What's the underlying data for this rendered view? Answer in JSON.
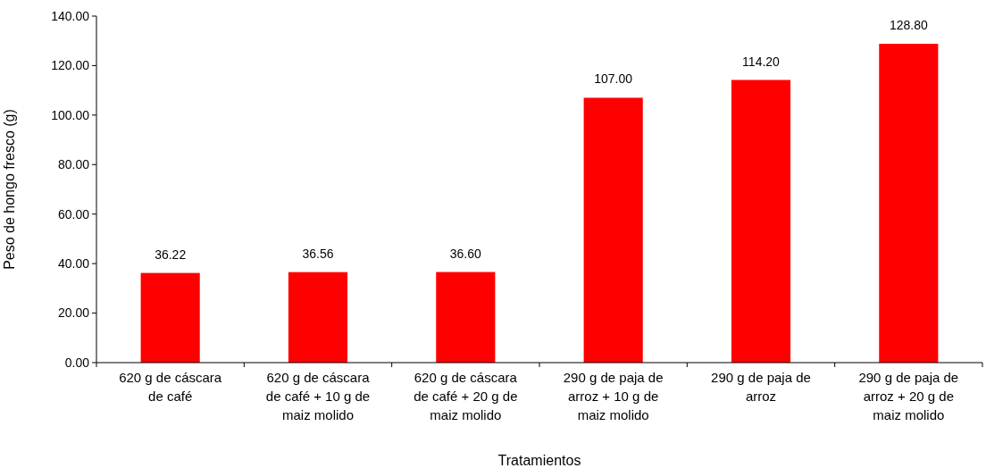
{
  "chart_data": {
    "type": "bar",
    "xlabel": "Tratamientos",
    "ylabel": "Peso de hongo fresco (g)",
    "categories": [
      "620 g de cáscara de café",
      "620 g de cáscara de café + 10 g de maiz molido",
      "620 g de cáscara de café + 20 g de maiz molido",
      "290 g de paja de arroz + 10 g de maiz molido",
      "290 g de paja de arroz",
      "290 g de paja de arroz + 20 g de maiz molido"
    ],
    "values": [
      36.22,
      36.56,
      36.6,
      107,
      114.2,
      128.8
    ],
    "value_labels": [
      "36.22",
      "36.56",
      "36.60",
      "107.00",
      "114.20",
      "128.80"
    ],
    "color": "#ff0000",
    "ylim": [
      0,
      140
    ],
    "yticks": [
      {
        "value": 0,
        "label": "0.00"
      },
      {
        "value": 20,
        "label": "20.00"
      },
      {
        "value": 40,
        "label": "40.00"
      },
      {
        "value": 60,
        "label": "60.00"
      },
      {
        "value": 80,
        "label": "80.00"
      },
      {
        "value": 100,
        "label": "100.00"
      },
      {
        "value": 120,
        "label": "120.00"
      },
      {
        "value": 140,
        "label": "140.00"
      }
    ],
    "grid": false
  }
}
